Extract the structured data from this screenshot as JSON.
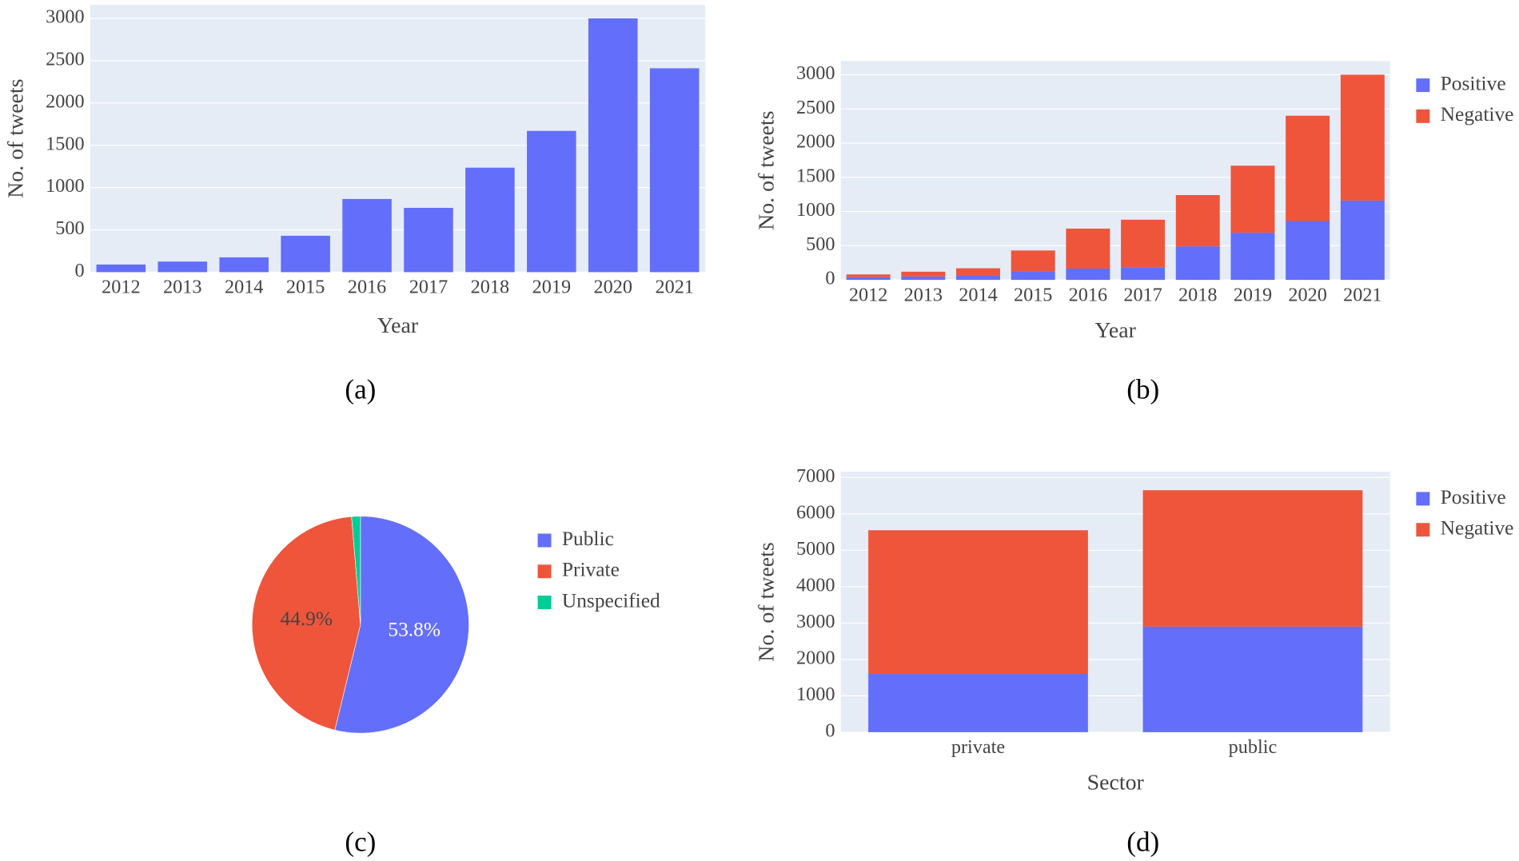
{
  "chart_data": [
    {
      "type": "bar",
      "caption": "(a)",
      "x_label": "Year",
      "y_label": "No. of tweets",
      "categories": [
        "2012",
        "2013",
        "2014",
        "2015",
        "2016",
        "2017",
        "2018",
        "2019",
        "2020",
        "2021"
      ],
      "values": [
        90,
        125,
        175,
        430,
        865,
        760,
        1235,
        1670,
        3000,
        2410
      ],
      "color": "#636efa",
      "ylim": [
        0,
        3160
      ],
      "yticks": [
        0,
        500,
        1000,
        1500,
        2000,
        2500,
        3000
      ],
      "grid": true,
      "background": "#e5ecf6"
    },
    {
      "type": "bar",
      "barmode": "stack",
      "caption": "(b)",
      "x_label": "Year",
      "y_label": "No. of tweets",
      "categories": [
        "2012",
        "2013",
        "2014",
        "2015",
        "2016",
        "2017",
        "2018",
        "2019",
        "2020",
        "2021"
      ],
      "series": [
        {
          "name": "Positive",
          "color": "#636efa",
          "values": [
            40,
            50,
            65,
            125,
            165,
            185,
            490,
            690,
            860,
            1160
          ]
        },
        {
          "name": "Negative",
          "color": "#ef553b",
          "values": [
            40,
            70,
            105,
            305,
            585,
            695,
            750,
            980,
            1540,
            1840
          ]
        }
      ],
      "ylim": [
        0,
        3200
      ],
      "yticks": [
        0,
        500,
        1000,
        1500,
        2000,
        2500,
        3000
      ],
      "grid": true,
      "background": "#e5ecf6",
      "legend": "right"
    },
    {
      "type": "pie",
      "caption": "(c)",
      "categories": [
        "Public",
        "Private",
        "Unspecified"
      ],
      "values": [
        53.8,
        44.9,
        1.3
      ],
      "value_labels": [
        "53.8%",
        "44.9%",
        null
      ],
      "colors": [
        "#636efa",
        "#ef553b",
        "#00cc96"
      ],
      "legend": "right"
    },
    {
      "type": "bar",
      "barmode": "stack",
      "caption": "(d)",
      "x_label": "Sector",
      "y_label": "No. of tweets",
      "categories": [
        "private",
        "public"
      ],
      "series": [
        {
          "name": "Positive",
          "color": "#636efa",
          "values": [
            1600,
            2900
          ]
        },
        {
          "name": "Negative",
          "color": "#ef553b",
          "values": [
            3950,
            3750
          ]
        }
      ],
      "ylim": [
        0,
        7160
      ],
      "yticks": [
        0,
        1000,
        2000,
        3000,
        4000,
        5000,
        6000,
        7000
      ],
      "grid": true,
      "background": "#e5ecf6",
      "legend": "right"
    }
  ]
}
